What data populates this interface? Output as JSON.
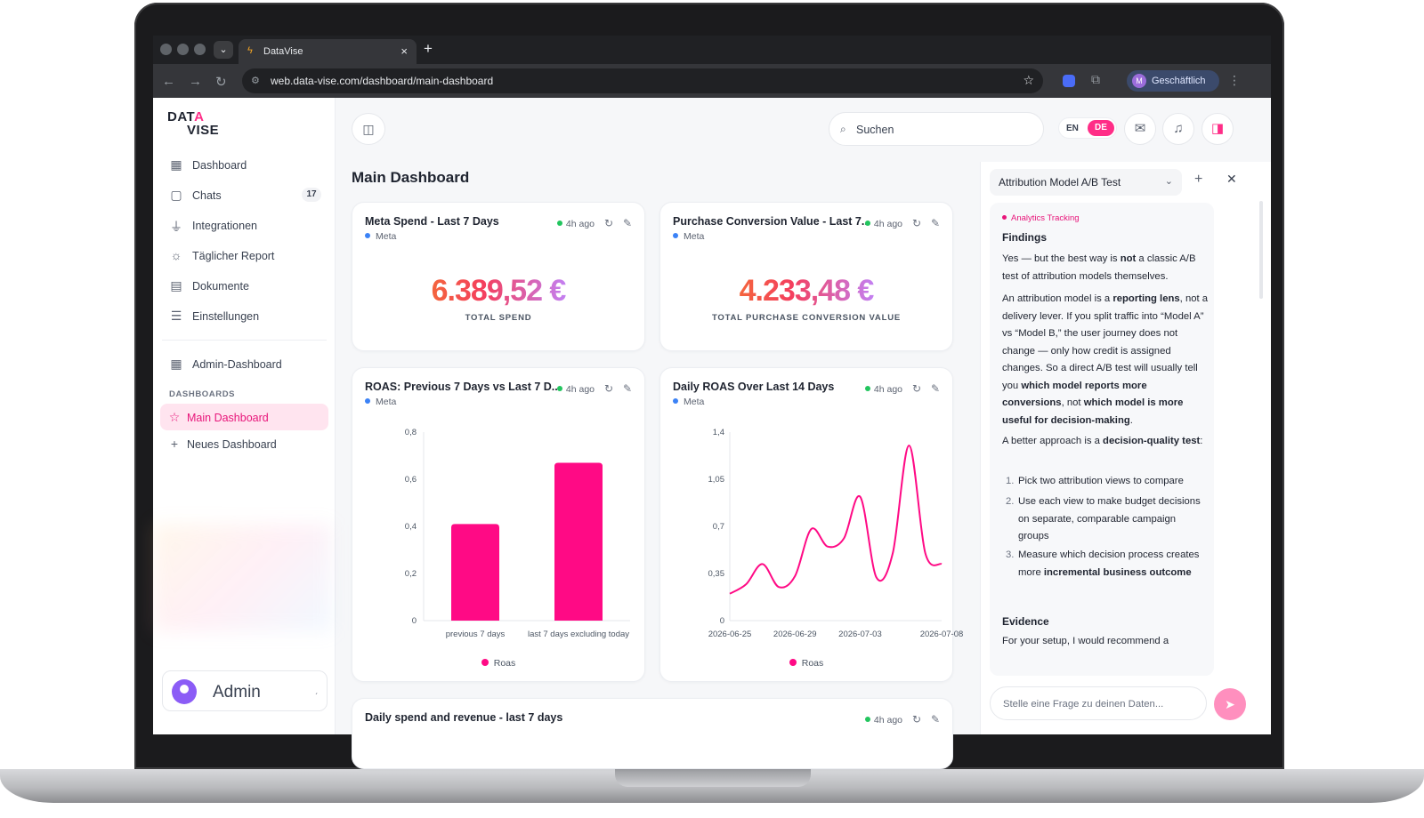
{
  "browser": {
    "tab_title": "DataVise",
    "url": "web.data-vise.com/dashboard/main-dashboard",
    "profile_initial": "M",
    "profile_name": "Geschäftlich"
  },
  "logo": {
    "line1": "DAT",
    "accent": "A",
    "line2": "VISE"
  },
  "sidebar": {
    "items": [
      {
        "label": "Dashboard",
        "icon": "grid-icon"
      },
      {
        "label": "Chats",
        "icon": "chat-icon",
        "badge": "17"
      },
      {
        "label": "Integrationen",
        "icon": "plug-icon"
      },
      {
        "label": "Täglicher Report",
        "icon": "sun-icon"
      },
      {
        "label": "Dokumente",
        "icon": "document-icon"
      },
      {
        "label": "Einstellungen",
        "icon": "sliders-icon"
      }
    ],
    "admin_item": "Admin-Dashboard",
    "section_label": "DASHBOARDS",
    "dashboards": [
      {
        "label": "Main Dashboard",
        "icon": "star-icon",
        "active": true
      },
      {
        "label": "Neues Dashboard",
        "icon": "plus-icon"
      }
    ],
    "user_name": "Admin"
  },
  "header": {
    "search_placeholder": "Suchen",
    "lang_en": "EN",
    "lang_de": "DE"
  },
  "page_title": "Main Dashboard",
  "cards": {
    "meta_spend": {
      "title": "Meta Spend - Last 7 Days",
      "source": "Meta",
      "updated": "4h ago",
      "value": "6.389,52 €",
      "label": "TOTAL SPEND"
    },
    "purchase_value": {
      "title": "Purchase Conversion Value - Last 7...",
      "source": "Meta",
      "updated": "4h ago",
      "value": "4.233,48 €",
      "label": "TOTAL PURCHASE CONVERSION VALUE"
    },
    "roas_compare": {
      "title": "ROAS: Previous 7 Days vs Last 7 D...",
      "source": "Meta",
      "updated": "4h ago",
      "legend": "Roas"
    },
    "roas_daily": {
      "title": "Daily ROAS Over Last 14 Days",
      "source": "Meta",
      "updated": "4h ago",
      "legend": "Roas"
    },
    "bottom": {
      "title": "Daily spend and revenue - last 7 days",
      "updated": "4h ago"
    }
  },
  "chart_data": [
    {
      "type": "bar",
      "categories": [
        "previous 7 days",
        "last 7 days excluding today"
      ],
      "series": [
        {
          "name": "Roas",
          "values": [
            0.41,
            0.67
          ]
        }
      ],
      "ylim": [
        0,
        0.8
      ],
      "yticks": [
        "0",
        "0,2",
        "0,4",
        "0,6",
        "0,8"
      ],
      "color": "#ff0a85",
      "legend": "bottom",
      "grid": false
    },
    {
      "type": "line",
      "x": [
        "2026-06-25",
        "2026-06-26",
        "2026-06-27",
        "2026-06-28",
        "2026-06-29",
        "2026-06-30",
        "2026-07-01",
        "2026-07-02",
        "2026-07-03",
        "2026-07-04",
        "2026-07-05",
        "2026-07-06",
        "2026-07-07",
        "2026-07-08"
      ],
      "xticks": [
        "2026-06-25",
        "2026-06-29",
        "2026-07-03",
        "2026-07-08"
      ],
      "series": [
        {
          "name": "Roas",
          "values": [
            0.2,
            0.27,
            0.42,
            0.25,
            0.33,
            0.68,
            0.55,
            0.61,
            0.92,
            0.32,
            0.5,
            1.3,
            0.5,
            0.42
          ]
        }
      ],
      "ylim": [
        0,
        1.4
      ],
      "yticks": [
        "0",
        "0,35",
        "0,7",
        "1,05",
        "1,4"
      ],
      "color": "#ff0a85",
      "legend": "bottom",
      "grid": false
    }
  ],
  "panel": {
    "selected_chat": "Attribution Model A/B Test",
    "tag": "Analytics Tracking",
    "findings_heading": "Findings",
    "p1_a": "Yes — but the best way is ",
    "p1_b": "not",
    "p1_c": " a classic A/B test of attribution models themselves.",
    "p2_a": "An attribution model is a ",
    "p2_b": "reporting lens",
    "p2_c": ", not a delivery lever. If you split traffic into “Model A” vs “Model B,” the user journey does not change — only how credit is assigned changes. So a direct A/B test will usually tell you ",
    "p2_d": "which model reports more conversions",
    "p2_e": ", not ",
    "p2_f": "which model is more useful for decision-making",
    "p2_g": ".",
    "p3_a": "A better approach is a ",
    "p3_b": "decision-quality test",
    "p3_c": ":",
    "steps": [
      {
        "n": "1.",
        "text": "Pick two attribution views to compare"
      },
      {
        "n": "2.",
        "text": "Use each view to make budget decisions on separate, comparable campaign groups"
      },
      {
        "n": "3.",
        "text_a": "Measure which decision process creates more ",
        "text_b": "incremental business outcome"
      }
    ],
    "evidence_heading": "Evidence",
    "evidence_text": "For your setup, I would recommend a",
    "ask_placeholder": "Stelle eine Frage zu deinen Daten..."
  }
}
